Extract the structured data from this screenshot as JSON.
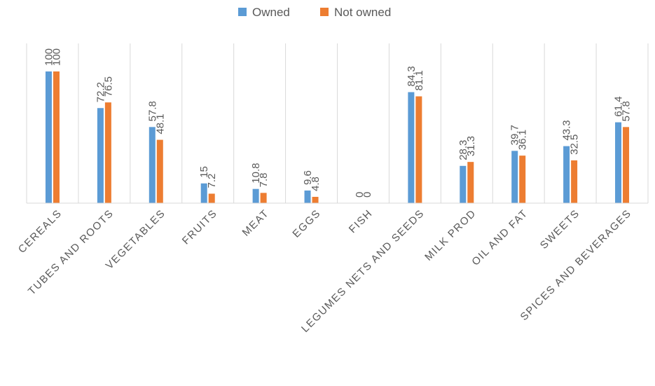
{
  "chart_data": {
    "type": "bar",
    "categories": [
      "CEREALS",
      "TUBES AND ROOTS",
      "VEGETABLES",
      "FRUITS",
      "MEAT",
      "EGGS",
      "FISH",
      "LEGUMES NETS AND SEEDS",
      "MILK PROD",
      "OIL AND FAT",
      "SWEETS",
      "SPICES AND BEVERAGES"
    ],
    "series": [
      {
        "name": "Owned",
        "values": [
          100,
          72.2,
          57.8,
          15,
          10.8,
          9.6,
          0,
          84.3,
          28.3,
          39.7,
          43.3,
          61.4
        ],
        "labels": [
          "100",
          "72.2",
          "57.8",
          "15",
          "10.8",
          "9.6",
          "0",
          "84.3",
          "28.3",
          "39.7",
          "43.3",
          "61.4"
        ],
        "color": "#5B9BD5"
      },
      {
        "name": "Not owned",
        "values": [
          100,
          76.5,
          48.1,
          7.2,
          7.8,
          4.8,
          0,
          81.1,
          31.3,
          36.1,
          32.5,
          57.8
        ],
        "labels": [
          "100",
          "76.5",
          "48.1",
          "7.2",
          "7.8",
          "4.8",
          "0",
          "81.1",
          "31.3",
          "36.1",
          "32.5",
          "57.8"
        ],
        "color": "#ED7D31"
      }
    ],
    "ylim": [
      0,
      100
    ],
    "legend": "top-center",
    "grid": "vertical category separators"
  }
}
